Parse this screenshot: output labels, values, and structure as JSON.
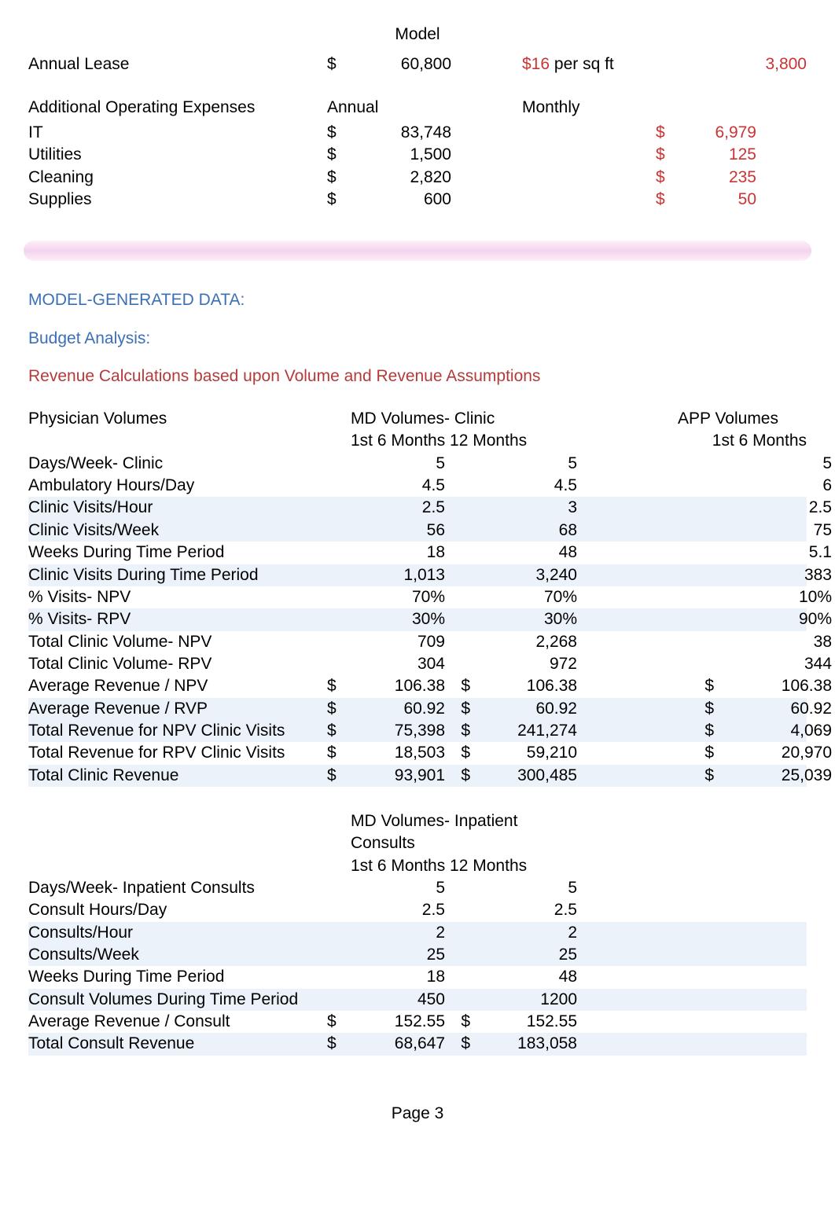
{
  "title": "Model",
  "lease": {
    "label": "Annual Lease",
    "sym": "$",
    "amount": "60,800",
    "rate_str": "$16",
    "per_sq_ft": "per sq ft",
    "sqft": "3,800",
    "rate_color": "#cc3333",
    "sqft_color": "#cc3333"
  },
  "expenses": {
    "header_label": "Additional Operating Expenses",
    "annual_label": "Annual",
    "monthly_label": "Monthly",
    "monthly_color": "#cc3333",
    "rows": [
      {
        "label": "IT",
        "sym": "$",
        "annual": "83,748",
        "sym2": "$",
        "monthly": "6,979"
      },
      {
        "label": "Utilities",
        "sym": "$",
        "annual": "1,500",
        "sym2": "$",
        "monthly": "125"
      },
      {
        "label": "Cleaning",
        "sym": "$",
        "annual": "2,820",
        "sym2": "$",
        "monthly": "235"
      },
      {
        "label": "Supplies",
        "sym": "$",
        "annual": "600",
        "sym2": "$",
        "monthly": "50"
      }
    ]
  },
  "headings": {
    "model_gen": "MODEL-GENERATED DATA:",
    "budget": "Budget Analysis:",
    "revenue": "Revenue Calculations based upon Volume and Revenue Assumptions"
  },
  "physician": {
    "title_left": "Physician Volumes",
    "title_mid": "MD Volumes- Clinic",
    "title_right": "APP Volumes",
    "sub_mid": "1st 6 Months 12 Months",
    "sub_right": "1st 6 Months",
    "rows": [
      {
        "label": "Days/Week- Clinic",
        "c1": "5",
        "c2": "5",
        "c3": "5"
      },
      {
        "label": "Ambulatory Hours/Day",
        "c1": "4.5",
        "c2": "4.5",
        "c3": "6"
      },
      {
        "label": "Clinic Visits/Hour",
        "c1": "2.5",
        "c2": "3",
        "c3": "2.5",
        "bg": true
      },
      {
        "label": "Clinic Visits/Week",
        "c1": "56",
        "c2": "68",
        "c3": "75",
        "bg": true
      },
      {
        "label": "Weeks During Time Period",
        "c1": "18",
        "c2": "48",
        "c3": "5.1"
      },
      {
        "label": "Clinic Visits During Time Period",
        "c1": "1,013",
        "c2": "3,240",
        "c3": "383",
        "bg": true
      },
      {
        "label": "% Visits- NPV",
        "c1": "70%",
        "c2": "70%",
        "c3": "10%"
      },
      {
        "label": "% Visits- RPV",
        "c1": "30%",
        "c2": "30%",
        "c3": "90%",
        "bg": true
      },
      {
        "label": "Total Clinic Volume- NPV",
        "c1": "709",
        "c2": "2,268",
        "c3": "38"
      },
      {
        "label": "Total Clinic Volume- RPV",
        "c1": "304",
        "c2": "972",
        "c3": "344"
      },
      {
        "label": "Average Revenue / NPV",
        "s1": "$",
        "c1": "106.38",
        "s2": "$",
        "c2": "106.38",
        "s3": "$",
        "c3": "106.38"
      },
      {
        "label": "Average Revenue / RVP",
        "s1": "$",
        "c1": "60.92",
        "s2": "$",
        "c2": "60.92",
        "s3": "$",
        "c3": "60.92",
        "bg": true
      },
      {
        "label": "Total Revenue for NPV Clinic Visits",
        "s1": "$",
        "c1": "75,398",
        "s2": "$",
        "c2": "241,274",
        "s3": "$",
        "c3": "4,069",
        "bg": true
      },
      {
        "label": "Total Revenue for RPV Clinic Visits",
        "s1": "$",
        "c1": "18,503",
        "s2": "$",
        "c2": "59,210",
        "s3": "$",
        "c3": "20,970"
      },
      {
        "label": "Total Clinic Revenue",
        "s1": "$",
        "c1": "93,901",
        "s2": "$",
        "c2": "300,485",
        "s3": "$",
        "c3": "25,039",
        "bg": true
      }
    ]
  },
  "inpatient": {
    "title_mid": "MD Volumes- Inpatient Consults",
    "sub_mid": "1st 6 Months 12 Months",
    "rows": [
      {
        "label": "Days/Week- Inpatient Consults",
        "c1": "5",
        "c2": "5"
      },
      {
        "label": "Consult Hours/Day",
        "c1": "2.5",
        "c2": "2.5"
      },
      {
        "label": "Consults/Hour",
        "c1": "2",
        "c2": "2",
        "shade": true
      },
      {
        "label": "Consults/Week",
        "c1": "25",
        "c2": "25",
        "shade": true
      },
      {
        "label": "Weeks During Time Period",
        "c1": "18",
        "c2": "48"
      },
      {
        "label": "Consult Volumes During Time Period",
        "c1": "450",
        "c2": "1200",
        "shade": true
      },
      {
        "label": "Average Revenue / Consult",
        "s1": "$",
        "c1": "152.55",
        "s2": "$",
        "c2": "152.55"
      },
      {
        "label": "Total Consult Revenue",
        "s1": "$",
        "c1": "68,647",
        "s2": "$",
        "c2": "183,058",
        "shade": true
      }
    ]
  },
  "footer": "Page 3",
  "colors": {
    "band_bg": "#ebf2fa",
    "heading_blue": "#3b6fb6",
    "heading_red": "#b53a3a",
    "value_red": "#cc3333"
  }
}
